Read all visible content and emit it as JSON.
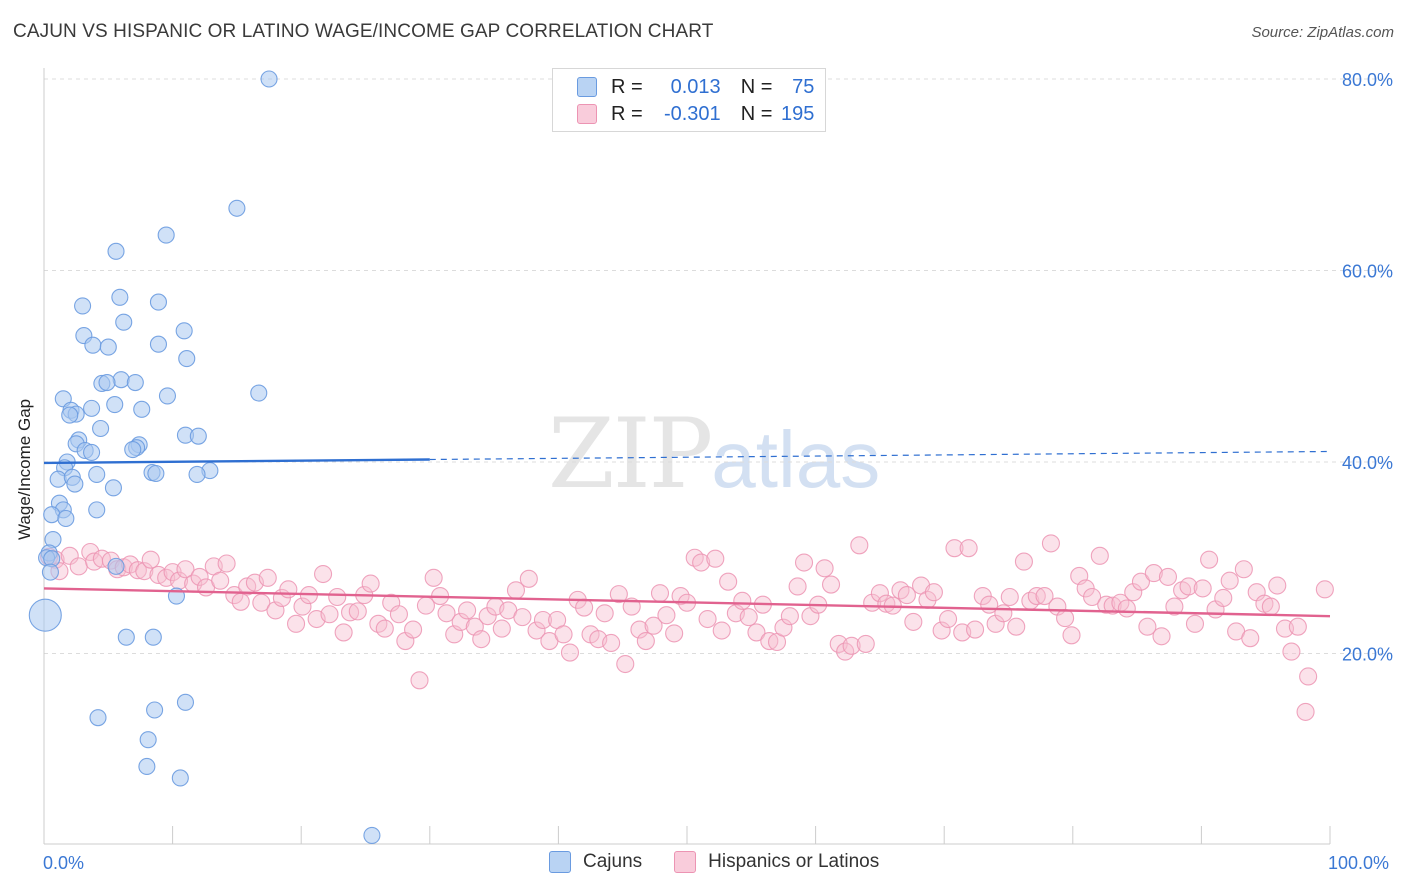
{
  "header": {
    "title": "CAJUN VS HISPANIC OR LATINO WAGE/INCOME GAP CORRELATION CHART",
    "source": "Source: ZipAtlas.com"
  },
  "legend": {
    "r_label": "R =",
    "n_label": "N =",
    "series": [
      {
        "r": "0.013",
        "n": "75"
      },
      {
        "r": "-0.301",
        "n": "195"
      }
    ]
  },
  "bottom_legend": {
    "items": [
      "Cajuns",
      "Hispanics or Latinos"
    ]
  },
  "watermark": {
    "zip": "ZIP",
    "atlas": "atlas"
  },
  "colors": {
    "blue_fill": "#a9c8f0",
    "blue_stroke": "#6a9be0",
    "blue_line": "#2f6fd1",
    "pink_fill": "#f6bfd1",
    "pink_stroke": "#ec94b3",
    "pink_line": "#e1628f",
    "grid": "#dcdcdc",
    "tick_text": "#3b78d4"
  },
  "chart_data": {
    "type": "scatter",
    "title": "CAJUN VS HISPANIC OR LATINO WAGE/INCOME GAP CORRELATION CHART",
    "xlabel": "",
    "ylabel": "Wage/Income Gap",
    "xlim": [
      0,
      100
    ],
    "ylim": [
      0,
      80
    ],
    "x_tick_labels": [
      "0.0%",
      "100.0%"
    ],
    "y_ticks": [
      20,
      40,
      60,
      80
    ],
    "y_tick_labels": [
      "20.0%",
      "40.0%",
      "60.0%",
      "80.0%"
    ],
    "grid": true,
    "series": [
      {
        "name": "Cajuns",
        "r": 0.013,
        "n": 75,
        "trend": {
          "x0": 0,
          "y0": 39.9,
          "x1": 100,
          "y1": 41.1,
          "solid_until_x": 30
        },
        "points": [
          [
            17.5,
            80.0
          ],
          [
            15.0,
            66.5
          ],
          [
            9.5,
            63.7
          ],
          [
            5.6,
            62.0
          ],
          [
            5.9,
            57.2
          ],
          [
            3.0,
            56.3
          ],
          [
            8.9,
            56.7
          ],
          [
            6.2,
            54.6
          ],
          [
            10.9,
            53.7
          ],
          [
            3.1,
            53.2
          ],
          [
            3.8,
            52.2
          ],
          [
            5.0,
            52.0
          ],
          [
            8.9,
            52.3
          ],
          [
            11.1,
            50.8
          ],
          [
            6.0,
            48.6
          ],
          [
            4.5,
            48.2
          ],
          [
            7.1,
            48.3
          ],
          [
            4.9,
            48.3
          ],
          [
            16.7,
            47.2
          ],
          [
            9.6,
            46.9
          ],
          [
            1.5,
            46.6
          ],
          [
            5.5,
            46.0
          ],
          [
            3.7,
            45.6
          ],
          [
            2.1,
            45.4
          ],
          [
            7.6,
            45.5
          ],
          [
            2.5,
            45.0
          ],
          [
            2.0,
            44.9
          ],
          [
            4.4,
            43.5
          ],
          [
            11.0,
            42.8
          ],
          [
            12.0,
            42.7
          ],
          [
            2.7,
            42.3
          ],
          [
            2.5,
            41.9
          ],
          [
            7.4,
            41.8
          ],
          [
            7.2,
            41.5
          ],
          [
            3.2,
            41.2
          ],
          [
            6.9,
            41.3
          ],
          [
            3.7,
            41.0
          ],
          [
            1.8,
            40.0
          ],
          [
            1.6,
            39.4
          ],
          [
            12.9,
            39.1
          ],
          [
            8.4,
            38.9
          ],
          [
            8.7,
            38.8
          ],
          [
            4.1,
            38.7
          ],
          [
            11.9,
            38.7
          ],
          [
            1.1,
            38.2
          ],
          [
            2.2,
            38.4
          ],
          [
            2.4,
            37.7
          ],
          [
            5.4,
            37.3
          ],
          [
            1.2,
            35.7
          ],
          [
            1.5,
            35.0
          ],
          [
            4.1,
            35.0
          ],
          [
            0.6,
            34.5
          ],
          [
            1.7,
            34.1
          ],
          [
            0.7,
            31.9
          ],
          [
            0.4,
            30.5
          ],
          [
            0.2,
            30.0
          ],
          [
            0.6,
            29.9
          ],
          [
            0.5,
            28.5
          ],
          [
            5.6,
            29.1
          ],
          [
            10.3,
            26.0
          ],
          [
            0.1,
            24.0
          ],
          [
            6.4,
            21.7
          ],
          [
            8.5,
            21.7
          ],
          [
            4.2,
            13.3
          ],
          [
            11.0,
            14.9
          ],
          [
            8.6,
            14.1
          ],
          [
            8.1,
            11.0
          ],
          [
            8.0,
            8.2
          ],
          [
            10.6,
            7.0
          ],
          [
            25.5,
            1.0
          ]
        ]
      },
      {
        "name": "Hispanics or Latinos",
        "r": -0.301,
        "n": 195,
        "trend": {
          "x0": 0,
          "y0": 26.8,
          "x1": 100,
          "y1": 23.9
        },
        "points": [
          [
            0.4,
            30.1
          ],
          [
            0.9,
            29.8
          ],
          [
            1.2,
            28.6
          ],
          [
            2.0,
            30.2
          ],
          [
            2.7,
            29.1
          ],
          [
            3.6,
            30.6
          ],
          [
            3.9,
            29.6
          ],
          [
            4.5,
            29.9
          ],
          [
            5.2,
            29.7
          ],
          [
            5.7,
            28.8
          ],
          [
            6.2,
            29.0
          ],
          [
            6.7,
            29.3
          ],
          [
            7.3,
            28.7
          ],
          [
            7.8,
            28.6
          ],
          [
            8.3,
            29.8
          ],
          [
            8.9,
            28.2
          ],
          [
            9.5,
            27.9
          ],
          [
            10.0,
            28.5
          ],
          [
            10.5,
            27.6
          ],
          [
            11.0,
            28.8
          ],
          [
            11.6,
            27.3
          ],
          [
            12.1,
            28.0
          ],
          [
            12.6,
            26.9
          ],
          [
            13.2,
            29.1
          ],
          [
            13.7,
            27.6
          ],
          [
            14.2,
            29.4
          ],
          [
            14.8,
            26.1
          ],
          [
            15.3,
            25.4
          ],
          [
            15.8,
            27.0
          ],
          [
            16.4,
            27.4
          ],
          [
            16.9,
            25.3
          ],
          [
            17.4,
            27.9
          ],
          [
            18.0,
            24.5
          ],
          [
            18.5,
            25.8
          ],
          [
            19.0,
            26.7
          ],
          [
            19.6,
            23.1
          ],
          [
            20.1,
            24.9
          ],
          [
            20.6,
            26.1
          ],
          [
            21.2,
            23.6
          ],
          [
            21.7,
            28.3
          ],
          [
            22.2,
            24.1
          ],
          [
            22.8,
            25.9
          ],
          [
            23.3,
            22.2
          ],
          [
            23.8,
            24.3
          ],
          [
            24.4,
            24.4
          ],
          [
            24.9,
            26.1
          ],
          [
            25.4,
            27.3
          ],
          [
            26.0,
            23.1
          ],
          [
            26.5,
            22.6
          ],
          [
            27.0,
            25.3
          ],
          [
            27.6,
            24.1
          ],
          [
            28.1,
            21.3
          ],
          [
            28.7,
            22.5
          ],
          [
            29.2,
            17.2
          ],
          [
            29.7,
            25.0
          ],
          [
            30.3,
            27.9
          ],
          [
            30.8,
            26.0
          ],
          [
            31.3,
            24.2
          ],
          [
            31.9,
            22.0
          ],
          [
            32.4,
            23.3
          ],
          [
            32.9,
            24.5
          ],
          [
            33.5,
            22.8
          ],
          [
            34.0,
            21.5
          ],
          [
            34.5,
            23.9
          ],
          [
            35.1,
            24.9
          ],
          [
            35.6,
            22.6
          ],
          [
            36.1,
            24.5
          ],
          [
            36.7,
            26.6
          ],
          [
            37.2,
            23.8
          ],
          [
            37.7,
            27.8
          ],
          [
            38.3,
            22.4
          ],
          [
            38.8,
            23.5
          ],
          [
            39.3,
            21.3
          ],
          [
            39.9,
            23.5
          ],
          [
            40.4,
            22.0
          ],
          [
            40.9,
            20.1
          ],
          [
            41.5,
            25.6
          ],
          [
            42.0,
            24.8
          ],
          [
            42.5,
            22.0
          ],
          [
            43.1,
            21.5
          ],
          [
            43.6,
            24.2
          ],
          [
            44.1,
            21.1
          ],
          [
            44.7,
            26.2
          ],
          [
            45.2,
            18.9
          ],
          [
            45.7,
            24.9
          ],
          [
            46.3,
            22.5
          ],
          [
            46.8,
            21.3
          ],
          [
            47.4,
            22.9
          ],
          [
            47.9,
            26.3
          ],
          [
            48.4,
            24.0
          ],
          [
            49.0,
            22.1
          ],
          [
            49.5,
            26.0
          ],
          [
            50.0,
            25.3
          ],
          [
            50.6,
            30.0
          ],
          [
            51.1,
            29.5
          ],
          [
            51.6,
            23.6
          ],
          [
            52.2,
            29.9
          ],
          [
            52.7,
            22.4
          ],
          [
            53.2,
            27.5
          ],
          [
            53.8,
            24.2
          ],
          [
            54.3,
            25.5
          ],
          [
            54.8,
            23.8
          ],
          [
            55.4,
            22.2
          ],
          [
            55.9,
            25.1
          ],
          [
            56.4,
            21.3
          ],
          [
            57.0,
            21.2
          ],
          [
            57.5,
            22.7
          ],
          [
            58.0,
            23.9
          ],
          [
            58.6,
            27.0
          ],
          [
            59.1,
            29.5
          ],
          [
            59.6,
            23.9
          ],
          [
            60.2,
            25.1
          ],
          [
            60.7,
            28.9
          ],
          [
            61.2,
            27.2
          ],
          [
            61.8,
            21.0
          ],
          [
            62.3,
            20.2
          ],
          [
            62.8,
            20.8
          ],
          [
            63.4,
            31.3
          ],
          [
            63.9,
            21.0
          ],
          [
            64.4,
            25.3
          ],
          [
            65.0,
            26.3
          ],
          [
            65.5,
            25.2
          ],
          [
            66.0,
            25.0
          ],
          [
            66.6,
            26.6
          ],
          [
            67.1,
            26.1
          ],
          [
            67.6,
            23.3
          ],
          [
            68.2,
            27.1
          ],
          [
            68.7,
            25.6
          ],
          [
            69.2,
            26.4
          ],
          [
            69.8,
            22.4
          ],
          [
            70.3,
            23.6
          ],
          [
            70.8,
            31.0
          ],
          [
            71.4,
            22.2
          ],
          [
            71.9,
            31.0
          ],
          [
            72.4,
            22.5
          ],
          [
            73.0,
            26.0
          ],
          [
            73.5,
            25.1
          ],
          [
            74.0,
            23.1
          ],
          [
            74.6,
            24.2
          ],
          [
            75.1,
            25.9
          ],
          [
            75.6,
            22.8
          ],
          [
            76.2,
            29.6
          ],
          [
            76.7,
            25.5
          ],
          [
            77.2,
            26.0
          ],
          [
            77.8,
            26.0
          ],
          [
            78.3,
            31.5
          ],
          [
            78.8,
            24.9
          ],
          [
            79.4,
            23.7
          ],
          [
            79.9,
            21.9
          ],
          [
            80.5,
            28.1
          ],
          [
            81.0,
            26.8
          ],
          [
            81.5,
            25.9
          ],
          [
            82.1,
            30.2
          ],
          [
            82.6,
            25.1
          ],
          [
            83.1,
            25.0
          ],
          [
            83.7,
            25.3
          ],
          [
            84.2,
            24.7
          ],
          [
            84.7,
            26.4
          ],
          [
            85.3,
            27.5
          ],
          [
            85.8,
            22.8
          ],
          [
            86.3,
            28.4
          ],
          [
            86.9,
            21.8
          ],
          [
            87.4,
            28.0
          ],
          [
            87.9,
            24.9
          ],
          [
            88.5,
            26.6
          ],
          [
            89.0,
            27.0
          ],
          [
            89.5,
            23.1
          ],
          [
            90.1,
            26.8
          ],
          [
            90.6,
            29.8
          ],
          [
            91.1,
            24.6
          ],
          [
            91.7,
            25.8
          ],
          [
            92.2,
            27.6
          ],
          [
            92.7,
            22.3
          ],
          [
            93.3,
            28.8
          ],
          [
            93.8,
            21.6
          ],
          [
            94.3,
            26.4
          ],
          [
            94.9,
            25.2
          ],
          [
            95.4,
            24.9
          ],
          [
            95.9,
            27.1
          ],
          [
            96.5,
            22.6
          ],
          [
            97.0,
            20.2
          ],
          [
            97.5,
            22.8
          ],
          [
            98.1,
            13.9
          ],
          [
            98.3,
            17.6
          ],
          [
            99.6,
            26.7
          ]
        ]
      }
    ]
  }
}
